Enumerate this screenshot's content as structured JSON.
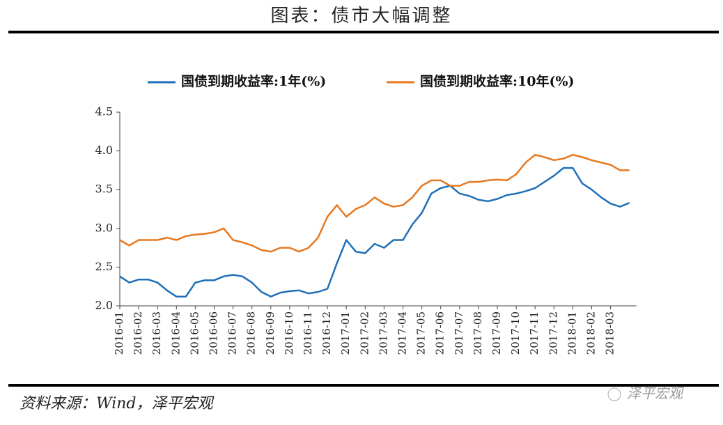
{
  "header": {
    "title": "图表：债市大幅调整"
  },
  "footer": {
    "source": "资料来源：Wind，泽平宏观",
    "watermark": "泽平宏观"
  },
  "chart_data": {
    "type": "line",
    "categories": [
      "2016-01",
      null,
      "2016-02",
      null,
      "2016-03",
      null,
      "2016-04",
      null,
      "2016-05",
      null,
      "2016-06",
      null,
      "2016-07",
      null,
      "2016-08",
      null,
      "2016-09",
      null,
      "2016-10",
      null,
      "2016-11",
      null,
      "2016-12",
      null,
      "2017-01",
      null,
      "2017-02",
      null,
      "2017-03",
      null,
      "2017-04",
      null,
      "2017-05",
      null,
      "2017-06",
      null,
      "2017-07",
      null,
      "2017-08",
      null,
      "2017-09",
      null,
      "2017-10",
      null,
      "2017-11",
      null,
      "2017-12",
      null,
      "2018-01",
      null,
      "2018-02",
      null,
      "2018-03",
      null,
      null
    ],
    "series": [
      {
        "name": "国债到期收益率:1年(%)",
        "color": "#1f6fb8",
        "values": [
          2.38,
          2.3,
          2.34,
          2.34,
          2.3,
          2.2,
          2.12,
          2.12,
          2.3,
          2.33,
          2.33,
          2.38,
          2.4,
          2.38,
          2.3,
          2.18,
          2.12,
          2.17,
          2.19,
          2.2,
          2.16,
          2.18,
          2.22,
          2.55,
          2.85,
          2.7,
          2.68,
          2.8,
          2.75,
          2.85,
          2.85,
          3.05,
          3.2,
          3.45,
          3.52,
          3.55,
          3.45,
          3.42,
          3.37,
          3.35,
          3.38,
          3.43,
          3.45,
          3.48,
          3.52,
          3.6,
          3.68,
          3.78,
          3.78,
          3.58,
          3.5,
          3.4,
          3.32,
          3.28,
          3.33
        ]
      },
      {
        "name": "国债到期收益率:10年(%)",
        "color": "#e8781e",
        "values": [
          2.85,
          2.78,
          2.85,
          2.85,
          2.85,
          2.88,
          2.85,
          2.9,
          2.92,
          2.93,
          2.95,
          3.0,
          2.85,
          2.82,
          2.78,
          2.72,
          2.7,
          2.75,
          2.75,
          2.7,
          2.75,
          2.88,
          3.15,
          3.3,
          3.15,
          3.25,
          3.3,
          3.4,
          3.32,
          3.28,
          3.3,
          3.4,
          3.55,
          3.62,
          3.62,
          3.55,
          3.55,
          3.6,
          3.6,
          3.62,
          3.63,
          3.62,
          3.7,
          3.85,
          3.95,
          3.92,
          3.88,
          3.9,
          3.95,
          3.92,
          3.88,
          3.85,
          3.82,
          3.75,
          3.75
        ]
      }
    ],
    "ylim": [
      2,
      4.5
    ],
    "yticks": [
      {
        "value": 2,
        "label": "2.0"
      },
      2.5,
      {
        "value": 3,
        "label": "3.0"
      },
      3.5,
      {
        "value": 4,
        "label": "4.0"
      },
      4.5
    ],
    "legend": "top"
  }
}
